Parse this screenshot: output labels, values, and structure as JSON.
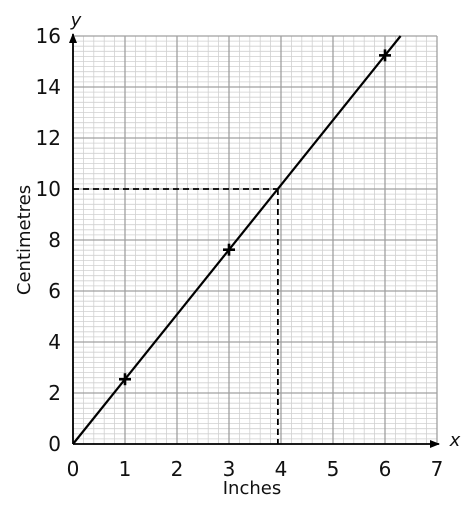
{
  "chart_data": {
    "type": "line",
    "title": "",
    "xlabel": "Inches",
    "ylabel": "Centimetres",
    "x_axis_letter": "x",
    "y_axis_letter": "y",
    "xlim": [
      0,
      7
    ],
    "ylim": [
      0,
      16
    ],
    "x_ticks": [
      "0",
      "1",
      "2",
      "3",
      "4",
      "5",
      "6",
      "7"
    ],
    "y_ticks": [
      "0",
      "2",
      "4",
      "6",
      "8",
      "10",
      "12",
      "14",
      "16"
    ],
    "grid": true,
    "minor_grid_per_unit_x": 5,
    "minor_grid_per_unit_y": 5,
    "series": [
      {
        "line": {
          "x": [
            0,
            6.3
          ],
          "y": [
            0,
            16.0
          ]
        },
        "points": [
          {
            "x": 1,
            "y": 2.54
          },
          {
            "x": 3,
            "y": 7.62
          },
          {
            "x": 6,
            "y": 15.24
          }
        ]
      }
    ],
    "reference_lines": [
      {
        "x": 3.94,
        "y": 10
      }
    ],
    "colors": {
      "line": "#000000",
      "major_grid": "#a0a0a0",
      "minor_grid": "#d0d0d0",
      "axis": "#000000"
    }
  }
}
